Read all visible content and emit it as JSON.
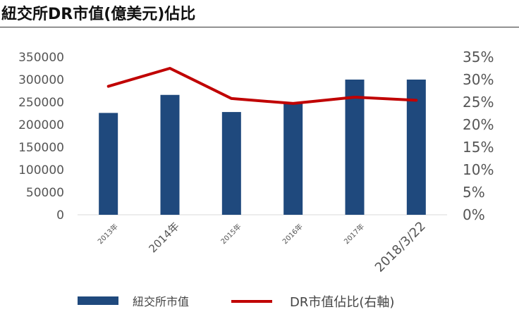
{
  "title": "紐交所DR市值(億美元)佔比",
  "chart_data": {
    "type": "bar",
    "categories": [
      "2013年",
      "2014年",
      "2015年",
      "2016年",
      "2017年",
      "2018/3/22"
    ],
    "series": [
      {
        "name": "紐交所市值",
        "type": "bar",
        "axis": "left",
        "color": "#1f497d",
        "values": [
          226000,
          266000,
          228000,
          250000,
          300000,
          300000
        ]
      },
      {
        "name": "DR市值佔比(右軸)",
        "type": "line",
        "axis": "right",
        "color": "#c00000",
        "values": [
          0.285,
          0.325,
          0.258,
          0.247,
          0.261,
          0.254
        ]
      }
    ],
    "ylim_left": [
      0,
      350000
    ],
    "ylim_right": [
      0,
      0.35
    ],
    "yticks_left": [
      "0",
      "50000",
      "100000",
      "150000",
      "200000",
      "250000",
      "300000",
      "350000"
    ],
    "yticks_right": [
      "0%",
      "5%",
      "10%",
      "15%",
      "20%",
      "25%",
      "30%",
      "35%"
    ],
    "grid": false,
    "legend_position": "bottom"
  }
}
